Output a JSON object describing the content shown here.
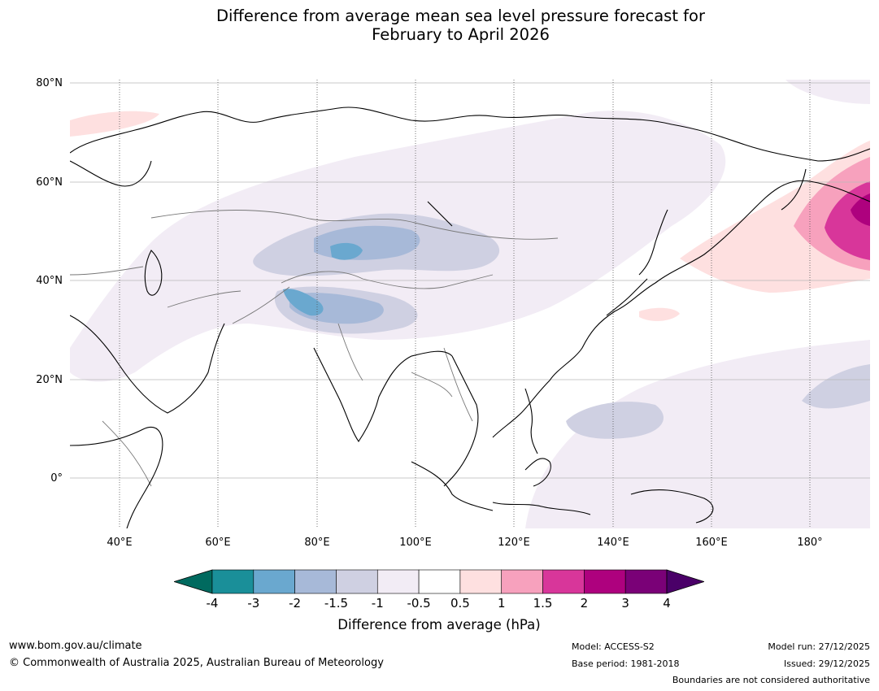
{
  "title_line1": "Difference from average mean sea level pressure forecast for",
  "title_line2": "February to April 2026",
  "latitude_labels": [
    "80°N",
    "60°N",
    "40°N",
    "20°N",
    "0°"
  ],
  "longitude_labels": [
    "40°E",
    "60°E",
    "80°E",
    "100°E",
    "120°E",
    "140°E",
    "160°E",
    "180°"
  ],
  "colorbar": {
    "ticks": [
      "-4",
      "-3",
      "-2",
      "-1.5",
      "-1",
      "-0.5",
      "0.5",
      "1",
      "1.5",
      "2",
      "3",
      "4"
    ],
    "colors": [
      "#1a8f99",
      "#6aa8cf",
      "#a7b9d8",
      "#cfd0e2",
      "#f2ecf5",
      "#ffffff",
      "#fee0e0",
      "#f7a1bd",
      "#d8369a",
      "#ae017e",
      "#7a0177"
    ],
    "under_color": "#006a5f",
    "over_color": "#4a0068",
    "label": "Difference from average (hPa)"
  },
  "footer": {
    "url": "www.bom.gov.au/climate",
    "copyright": "© Commonwealth of Australia 2025, Australian Bureau of Meteorology",
    "model": "Model: ACCESS-S2",
    "base_period": "Base period: 1981-2018",
    "model_run": "Model run: 27/12/2025",
    "issued": "Issued: 29/12/2025",
    "disclaimer": "Boundaries are not considered authoritative"
  }
}
